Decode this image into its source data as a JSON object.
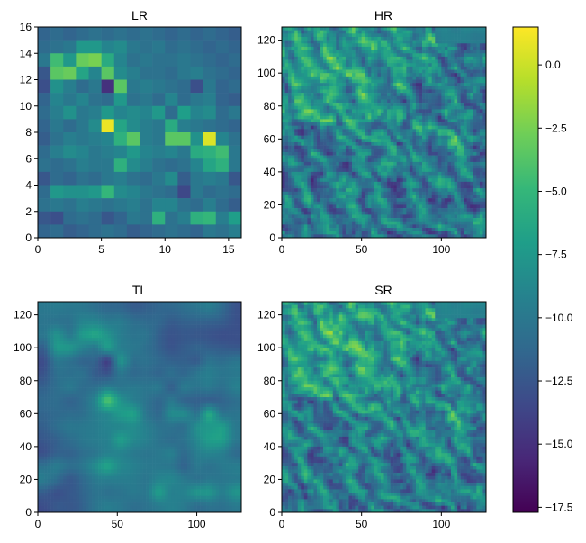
{
  "chart_data": {
    "type": "heatmap",
    "colormap": "viridis",
    "colormap_stops": [
      "#440154",
      "#482878",
      "#3e4989",
      "#31688e",
      "#26828e",
      "#1f9e89",
      "#35b779",
      "#6ece58",
      "#b5de2b",
      "#fde725"
    ],
    "colorbar": {
      "vmin": -17.7,
      "vmax": 1.5,
      "ticks": [
        0.0,
        -2.5,
        -5.0,
        -7.5,
        -10.0,
        -12.5,
        -15.0,
        -17.5
      ],
      "tick_labels": [
        "0.0",
        "−2.5",
        "−5.0",
        "−7.5",
        "−10.0",
        "−12.5",
        "−15.0",
        "−17.5"
      ]
    },
    "panels": [
      {
        "title": "LR",
        "xlim": [
          0,
          16
        ],
        "ylim": [
          0,
          16
        ],
        "xticks": [
          0,
          5,
          10,
          15
        ],
        "xtick_labels": [
          "0",
          "5",
          "10",
          "15"
        ],
        "yticks": [
          0,
          2,
          4,
          6,
          8,
          10,
          12,
          14,
          16
        ],
        "ytick_labels": [
          "0",
          "2",
          "4",
          "6",
          "8",
          "10",
          "12",
          "14",
          "16"
        ],
        "resolution": 16,
        "grid_top_to_bottom": [
          [
            -11.5,
            -11.0,
            -11.5,
            -11.0,
            -10.5,
            -11.0,
            -10.5,
            -11.0,
            -10.5,
            -11.0,
            -11.5,
            -11.0,
            -11.5,
            -11.0,
            -11.5,
            -12.0
          ],
          [
            -11.0,
            -10.5,
            -10.0,
            -7.5,
            -7.5,
            -9.0,
            -8.5,
            -10.0,
            -10.5,
            -10.0,
            -11.0,
            -10.5,
            -11.0,
            -11.5,
            -11.0,
            -11.5
          ],
          [
            -10.0,
            -4.5,
            -7.5,
            -3.0,
            -2.5,
            -6.0,
            -9.0,
            -10.5,
            -10.0,
            -10.5,
            -10.5,
            -10.0,
            -10.5,
            -11.0,
            -11.5,
            -11.0
          ],
          [
            -12.5,
            -3.5,
            -3.0,
            -6.5,
            -9.0,
            -3.5,
            -8.5,
            -9.5,
            -10.5,
            -10.5,
            -11.0,
            -10.0,
            -9.5,
            -10.5,
            -11.0,
            -11.5
          ],
          [
            -13.0,
            -8.0,
            -9.5,
            -11.0,
            -10.0,
            -15.0,
            -3.5,
            -10.0,
            -9.5,
            -10.0,
            -10.5,
            -11.0,
            -13.0,
            -10.0,
            -11.5,
            -11.0
          ],
          [
            -11.5,
            -9.0,
            -10.0,
            -9.0,
            -10.5,
            -11.0,
            -7.5,
            -10.5,
            -10.0,
            -11.0,
            -9.0,
            -11.0,
            -10.0,
            -9.5,
            -11.5,
            -12.0
          ],
          [
            -11.0,
            -9.5,
            -8.0,
            -10.0,
            -9.5,
            -7.5,
            -9.0,
            -8.5,
            -9.0,
            -7.5,
            -11.0,
            -7.0,
            -9.0,
            -8.5,
            -11.0,
            -10.0
          ],
          [
            -11.5,
            -10.0,
            -11.0,
            -10.0,
            -8.5,
            1.0,
            -6.5,
            -8.5,
            -9.5,
            -10.0,
            -6.0,
            -9.5,
            -10.0,
            -10.5,
            -11.0,
            -11.5
          ],
          [
            -12.0,
            -10.5,
            -9.5,
            -10.0,
            -9.5,
            -9.0,
            -5.5,
            -3.5,
            -9.5,
            -10.0,
            -3.5,
            -3.5,
            -8.0,
            0.5,
            -9.0,
            -10.5
          ],
          [
            -11.0,
            -9.5,
            -8.5,
            -9.0,
            -10.0,
            -9.5,
            -9.0,
            -7.5,
            -9.0,
            -9.5,
            -9.0,
            -10.0,
            -6.0,
            -5.5,
            -4.5,
            -10.0
          ],
          [
            -10.5,
            -11.0,
            -10.5,
            -9.5,
            -10.0,
            -10.0,
            -5.5,
            -8.5,
            -9.5,
            -10.5,
            -11.0,
            -10.5,
            -9.0,
            -6.5,
            -5.5,
            -10.0
          ],
          [
            -12.5,
            -11.0,
            -11.5,
            -10.5,
            -11.0,
            -10.0,
            -9.5,
            -10.5,
            -11.0,
            -10.0,
            -8.5,
            -12.0,
            -10.0,
            -9.5,
            -10.0,
            -12.5
          ],
          [
            -11.0,
            -7.5,
            -8.0,
            -8.0,
            -7.5,
            -5.0,
            -8.5,
            -9.0,
            -10.0,
            -10.5,
            -11.0,
            -13.5,
            -10.0,
            -11.0,
            -10.5,
            -11.0
          ],
          [
            -10.5,
            -10.0,
            -10.5,
            -9.5,
            -10.0,
            -10.5,
            -10.0,
            -9.5,
            -10.5,
            -9.0,
            -9.0,
            -10.5,
            -11.0,
            -9.5,
            -11.0,
            -12.0
          ],
          [
            -12.5,
            -13.0,
            -11.0,
            -10.5,
            -11.0,
            -12.5,
            -11.5,
            -10.0,
            -10.5,
            -5.5,
            -10.5,
            -9.5,
            -5.5,
            -5.0,
            -9.5,
            -7.0
          ],
          [
            -11.5,
            -11.0,
            -12.0,
            -11.5,
            -11.0,
            -10.5,
            -11.0,
            -12.0,
            -11.5,
            -11.0,
            -10.5,
            -11.0,
            -11.5,
            -10.0,
            -10.5,
            -9.5
          ]
        ]
      },
      {
        "title": "HR",
        "xlim": [
          0,
          128
        ],
        "ylim": [
          0,
          128
        ],
        "xticks": [
          0,
          50,
          100
        ],
        "xtick_labels": [
          "0",
          "50",
          "100"
        ],
        "yticks": [
          0,
          20,
          40,
          60,
          80,
          100,
          120
        ],
        "ytick_labels": [
          "0",
          "20",
          "40",
          "60",
          "80",
          "100",
          "120"
        ],
        "resolution": 128
      },
      {
        "title": "TL",
        "xlim": [
          0,
          128
        ],
        "ylim": [
          0,
          128
        ],
        "xticks": [
          0,
          50,
          100
        ],
        "xtick_labels": [
          "0",
          "50",
          "100"
        ],
        "yticks": [
          0,
          20,
          40,
          60,
          80,
          100,
          120
        ],
        "ytick_labels": [
          "0",
          "20",
          "40",
          "60",
          "80",
          "100",
          "120"
        ],
        "resolution": 128
      },
      {
        "title": "SR",
        "xlim": [
          0,
          128
        ],
        "ylim": [
          0,
          128
        ],
        "xticks": [
          0,
          50,
          100
        ],
        "xtick_labels": [
          "0",
          "50",
          "100"
        ],
        "yticks": [
          0,
          20,
          40,
          60,
          80,
          100,
          120
        ],
        "ytick_labels": [
          "0",
          "20",
          "40",
          "60",
          "80",
          "100",
          "120"
        ],
        "resolution": 128
      }
    ]
  }
}
